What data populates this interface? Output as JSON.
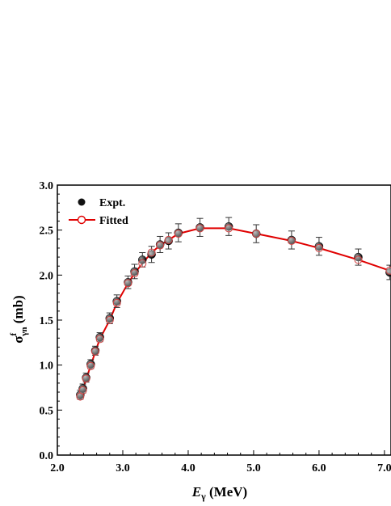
{
  "chart_data": {
    "type": "scatter",
    "xlabel": {
      "main": "E",
      "sub": "γ",
      "unit": " (MeV)"
    },
    "ylabel": {
      "main": "σ",
      "sup": "f",
      "sub": "γn",
      "unit": " (mb)"
    },
    "xlim": [
      2.0,
      7.1
    ],
    "ylim": [
      0.0,
      3.0
    ],
    "x_ticks": [
      "2.0",
      "3.0",
      "4.0",
      "5.0",
      "6.0",
      "7.0"
    ],
    "y_ticks": [
      "0.0",
      "0.5",
      "1.0",
      "1.5",
      "2.0",
      "2.5",
      "3.0"
    ],
    "legend_position": "top-left",
    "legend": [
      "Expt.",
      "Fitted"
    ],
    "series": [
      {
        "name": "Expt.",
        "marker": "filled-circle",
        "color": "#000000",
        "x": [
          2.35,
          2.39,
          2.44,
          2.51,
          2.58,
          2.65,
          2.8,
          2.91,
          3.08,
          3.18,
          3.3,
          3.44,
          3.57,
          3.7,
          3.85,
          4.18,
          4.62,
          5.04,
          5.58,
          6.0,
          6.6,
          7.08
        ],
        "y": [
          0.67,
          0.74,
          0.86,
          1.01,
          1.16,
          1.31,
          1.52,
          1.71,
          1.92,
          2.04,
          2.17,
          2.23,
          2.34,
          2.38,
          2.47,
          2.53,
          2.54,
          2.46,
          2.39,
          2.32,
          2.2,
          2.03
        ],
        "yerr": [
          0.05,
          0.05,
          0.05,
          0.05,
          0.05,
          0.05,
          0.06,
          0.07,
          0.07,
          0.08,
          0.08,
          0.09,
          0.09,
          0.09,
          0.1,
          0.1,
          0.1,
          0.1,
          0.1,
          0.1,
          0.09,
          0.08
        ]
      },
      {
        "name": "Fitted",
        "marker": "open-circle",
        "color": "#e00000",
        "x": [
          2.35,
          2.39,
          2.44,
          2.51,
          2.58,
          2.65,
          2.8,
          2.91,
          3.08,
          3.18,
          3.3,
          3.44,
          3.57,
          3.7,
          3.85,
          4.18,
          4.62,
          5.04,
          5.58,
          6.0,
          6.6,
          7.08
        ],
        "y": [
          0.65,
          0.72,
          0.85,
          0.99,
          1.15,
          1.29,
          1.5,
          1.69,
          1.91,
          2.02,
          2.13,
          2.25,
          2.33,
          2.39,
          2.46,
          2.52,
          2.52,
          2.46,
          2.38,
          2.3,
          2.17,
          2.05
        ]
      }
    ]
  }
}
